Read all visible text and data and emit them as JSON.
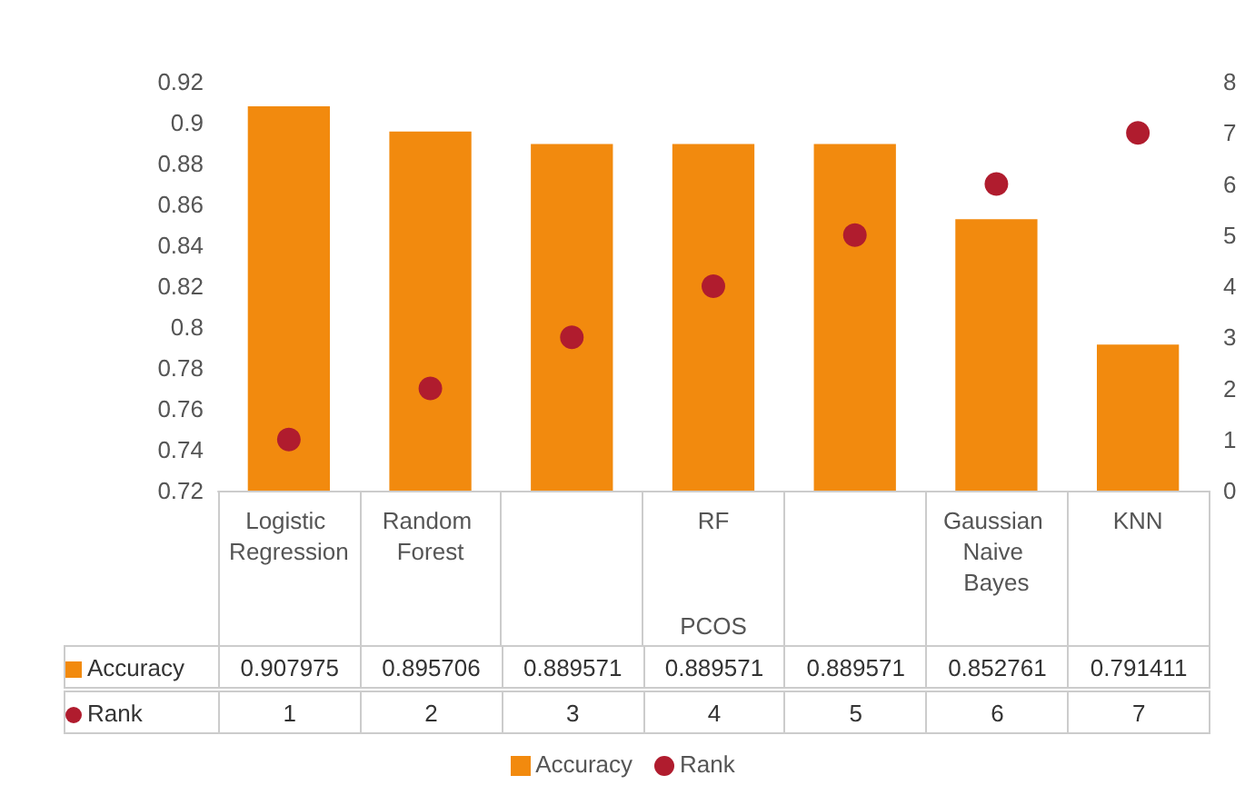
{
  "chart_data": {
    "type": "bar",
    "xlabel": "PCOS",
    "categories": [
      "Logistic Regression",
      "Random Forest",
      null,
      "RF",
      null,
      "Gaussian Naive Bayes",
      "KNN"
    ],
    "series": [
      {
        "name": "Accuracy",
        "color": "#f28a0e",
        "values": [
          0.907975,
          0.895706,
          0.889571,
          0.889571,
          0.889571,
          0.852761,
          0.791411
        ]
      },
      {
        "name": "Rank",
        "type": "scatter",
        "axis": "y2",
        "color": "#b01c2e",
        "marker": "circle",
        "values": [
          1,
          2,
          3,
          4,
          5,
          6,
          7
        ]
      }
    ],
    "ylim": [
      0.72,
      0.92
    ],
    "yticks": [
      0.72,
      0.74,
      0.76,
      0.78,
      0.8,
      0.82,
      0.84,
      0.86,
      0.88,
      0.9,
      0.92
    ],
    "y2lim": [
      0,
      8
    ],
    "y2ticks": [
      0,
      1,
      2,
      3,
      4,
      5,
      6,
      7,
      8
    ],
    "legend": "bottom",
    "data_labels": true
  }
}
